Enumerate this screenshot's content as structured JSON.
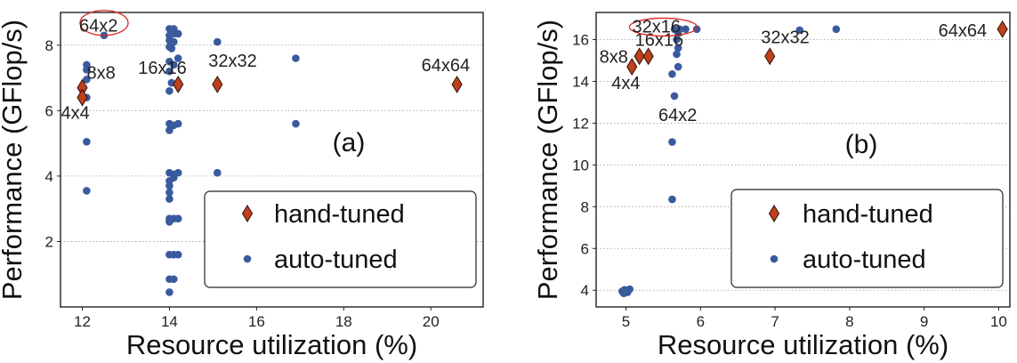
{
  "colors": {
    "hand_tuned": "#c0401c",
    "auto_tuned": "#3a5a9e",
    "highlight": "#dd2222"
  },
  "chart_data": [
    {
      "type": "scatter",
      "panel_label": "(a)",
      "xlabel": "Resource utilization (%)",
      "ylabel": "Performance (GFlop/s)",
      "xlim": [
        11.5,
        21.2
      ],
      "ylim": [
        0,
        9.0
      ],
      "xticks": [
        12,
        14,
        16,
        18,
        20
      ],
      "yticks": [
        2,
        4,
        6,
        8
      ],
      "grid": "horizontal",
      "legend_position": "lower-right",
      "series": [
        {
          "name": "hand-tuned",
          "marker": "diamond",
          "points": [
            {
              "x": 12.0,
              "y": 6.7,
              "label": "8x8"
            },
            {
              "x": 12.0,
              "y": 6.4,
              "label": "4x4"
            },
            {
              "x": 14.2,
              "y": 6.8,
              "label": "16x16"
            },
            {
              "x": 15.1,
              "y": 6.8,
              "label": "32x32"
            },
            {
              "x": 20.6,
              "y": 6.8,
              "label": "64x64"
            }
          ]
        },
        {
          "name": "auto-tuned",
          "marker": "circle",
          "points": [
            {
              "x": 12.5,
              "y": 8.3
            },
            {
              "x": 12.1,
              "y": 7.4
            },
            {
              "x": 12.1,
              "y": 7.25
            },
            {
              "x": 12.1,
              "y": 6.95
            },
            {
              "x": 12.1,
              "y": 6.4
            },
            {
              "x": 12.1,
              "y": 5.05
            },
            {
              "x": 12.1,
              "y": 3.55
            },
            {
              "x": 14.0,
              "y": 8.5
            },
            {
              "x": 14.05,
              "y": 8.45
            },
            {
              "x": 14.1,
              "y": 8.5
            },
            {
              "x": 14.0,
              "y": 8.3
            },
            {
              "x": 14.1,
              "y": 8.35
            },
            {
              "x": 14.2,
              "y": 8.35
            },
            {
              "x": 14.0,
              "y": 8.15
            },
            {
              "x": 14.1,
              "y": 8.1
            },
            {
              "x": 14.0,
              "y": 7.95
            },
            {
              "x": 14.05,
              "y": 7.9
            },
            {
              "x": 14.2,
              "y": 7.6
            },
            {
              "x": 14.0,
              "y": 7.5
            },
            {
              "x": 14.1,
              "y": 7.4
            },
            {
              "x": 14.0,
              "y": 7.2
            },
            {
              "x": 14.05,
              "y": 6.85
            },
            {
              "x": 14.0,
              "y": 6.6
            },
            {
              "x": 14.0,
              "y": 5.6
            },
            {
              "x": 14.1,
              "y": 5.55
            },
            {
              "x": 14.2,
              "y": 5.6
            },
            {
              "x": 14.0,
              "y": 5.4
            },
            {
              "x": 14.0,
              "y": 4.1
            },
            {
              "x": 14.1,
              "y": 4.05
            },
            {
              "x": 14.2,
              "y": 4.1
            },
            {
              "x": 14.0,
              "y": 3.85
            },
            {
              "x": 14.1,
              "y": 3.95
            },
            {
              "x": 14.0,
              "y": 3.7
            },
            {
              "x": 14.0,
              "y": 3.5
            },
            {
              "x": 14.0,
              "y": 3.3
            },
            {
              "x": 14.0,
              "y": 2.7
            },
            {
              "x": 14.1,
              "y": 2.7
            },
            {
              "x": 14.2,
              "y": 2.7
            },
            {
              "x": 14.0,
              "y": 2.6
            },
            {
              "x": 14.0,
              "y": 1.6
            },
            {
              "x": 14.1,
              "y": 1.6
            },
            {
              "x": 14.2,
              "y": 1.6
            },
            {
              "x": 14.0,
              "y": 0.85
            },
            {
              "x": 14.1,
              "y": 0.85
            },
            {
              "x": 14.0,
              "y": 0.45
            },
            {
              "x": 15.1,
              "y": 8.1
            },
            {
              "x": 15.1,
              "y": 4.1
            },
            {
              "x": 16.9,
              "y": 7.6
            },
            {
              "x": 16.9,
              "y": 5.6
            }
          ]
        }
      ],
      "highlight": {
        "label": "64x2",
        "x": 12.5,
        "y": 8.3
      }
    },
    {
      "type": "scatter",
      "panel_label": "(b)",
      "xlabel": "Resource utilization (%)",
      "ylabel": "Performance (GFlop/s)",
      "xlim": [
        4.6,
        10.15
      ],
      "ylim": [
        3.2,
        17.3
      ],
      "xticks": [
        5,
        6,
        7,
        8,
        9,
        10
      ],
      "yticks": [
        4,
        6,
        8,
        10,
        12,
        14,
        16
      ],
      "grid": "horizontal",
      "legend_position": "lower-right",
      "series": [
        {
          "name": "hand-tuned",
          "marker": "diamond",
          "points": [
            {
              "x": 5.08,
              "y": 14.7,
              "label": "4x4"
            },
            {
              "x": 5.18,
              "y": 15.2,
              "label": "8x8"
            },
            {
              "x": 5.3,
              "y": 15.2,
              "label": "16x16"
            },
            {
              "x": 6.93,
              "y": 15.2,
              "label": "32x32"
            },
            {
              "x": 10.05,
              "y": 16.5,
              "label": "64x64"
            }
          ]
        },
        {
          "name": "auto-tuned",
          "marker": "circle",
          "points": [
            {
              "x": 5.65,
              "y": 16.5
            },
            {
              "x": 5.72,
              "y": 16.5
            },
            {
              "x": 5.8,
              "y": 16.5
            },
            {
              "x": 5.95,
              "y": 16.5
            },
            {
              "x": 5.7,
              "y": 16.3
            },
            {
              "x": 5.68,
              "y": 16.0
            },
            {
              "x": 5.7,
              "y": 15.6
            },
            {
              "x": 5.68,
              "y": 15.3
            },
            {
              "x": 5.7,
              "y": 14.7
            },
            {
              "x": 5.62,
              "y": 14.35
            },
            {
              "x": 5.65,
              "y": 13.3
            },
            {
              "x": 5.62,
              "y": 11.1
            },
            {
              "x": 5.62,
              "y": 8.35
            },
            {
              "x": 7.33,
              "y": 16.45
            },
            {
              "x": 7.82,
              "y": 16.5
            },
            {
              "x": 4.95,
              "y": 3.95
            },
            {
              "x": 5.0,
              "y": 4.0
            },
            {
              "x": 4.97,
              "y": 3.85
            },
            {
              "x": 5.02,
              "y": 3.9
            },
            {
              "x": 5.05,
              "y": 4.05
            },
            {
              "x": 4.98,
              "y": 4.02
            }
          ]
        }
      ],
      "highlight": {
        "label": "32x16",
        "x": 5.62,
        "y": 16.6
      },
      "extra_labels": [
        {
          "text": "64x2",
          "x": 5.65,
          "y": 13.3
        }
      ]
    }
  ]
}
